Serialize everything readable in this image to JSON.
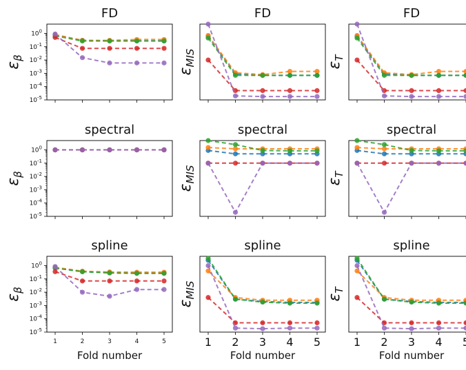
{
  "chart_data": [
    {
      "type": "line",
      "title": "FD",
      "ylabel": "ε_β",
      "xlabel": "",
      "yscale": "log",
      "ylim": [
        1e-05,
        5
      ],
      "x": [
        1,
        2,
        3,
        4,
        5
      ],
      "series": [
        {
          "color": "#1f77b4",
          "values": [
            0.8,
            0.3,
            0.28,
            0.28,
            0.28
          ]
        },
        {
          "color": "#ff7f0e",
          "values": [
            0.8,
            0.3,
            0.3,
            0.35,
            0.35
          ]
        },
        {
          "color": "#2ca02c",
          "values": [
            0.65,
            0.27,
            0.27,
            0.27,
            0.27
          ]
        },
        {
          "color": "#d62728",
          "values": [
            0.5,
            0.075,
            0.075,
            0.075,
            0.075
          ]
        },
        {
          "color": "#9467bd",
          "values": [
            0.9,
            0.015,
            0.006,
            0.006,
            0.006
          ]
        }
      ]
    },
    {
      "type": "line",
      "title": "FD",
      "ylabel": "ε_MIS",
      "xlabel": "",
      "yscale": "log",
      "ylim": [
        1e-05,
        5
      ],
      "x": [
        1,
        2,
        3,
        4,
        5
      ],
      "series": [
        {
          "color": "#1f77b4",
          "values": [
            0.6,
            0.0009,
            0.0007,
            0.0007,
            0.0007
          ]
        },
        {
          "color": "#ff7f0e",
          "values": [
            0.7,
            0.0011,
            0.0008,
            0.0014,
            0.0014
          ]
        },
        {
          "color": "#2ca02c",
          "values": [
            0.45,
            0.0007,
            0.0007,
            0.0007,
            0.0007
          ]
        },
        {
          "color": "#d62728",
          "values": [
            0.01,
            5e-05,
            5e-05,
            5e-05,
            5e-05
          ]
        },
        {
          "color": "#9467bd",
          "values": [
            5,
            2e-05,
            1.8e-05,
            1.8e-05,
            1.8e-05
          ]
        }
      ]
    },
    {
      "type": "line",
      "title": "FD",
      "ylabel": "ε_T",
      "xlabel": "",
      "yscale": "log",
      "ylim": [
        1e-05,
        5
      ],
      "x": [
        1,
        2,
        3,
        4,
        5
      ],
      "series": [
        {
          "color": "#1f77b4",
          "values": [
            0.6,
            0.0009,
            0.0007,
            0.0007,
            0.0007
          ]
        },
        {
          "color": "#ff7f0e",
          "values": [
            0.7,
            0.0011,
            0.0008,
            0.0014,
            0.0014
          ]
        },
        {
          "color": "#2ca02c",
          "values": [
            0.45,
            0.0007,
            0.0007,
            0.0007,
            0.0007
          ]
        },
        {
          "color": "#d62728",
          "values": [
            0.01,
            5e-05,
            5e-05,
            5e-05,
            5e-05
          ]
        },
        {
          "color": "#9467bd",
          "values": [
            5,
            2e-05,
            1.8e-05,
            1.8e-05,
            1.8e-05
          ]
        }
      ]
    },
    {
      "type": "line",
      "title": "spectral",
      "ylabel": "ε_β",
      "xlabel": "",
      "yscale": "log",
      "ylim": [
        1e-05,
        5
      ],
      "x": [
        1,
        2,
        3,
        4,
        5
      ],
      "series": [
        {
          "color": "#1f77b4",
          "values": [
            1.0,
            1.0,
            1.0,
            1.0,
            1.0
          ]
        },
        {
          "color": "#ff7f0e",
          "values": [
            1.0,
            1.0,
            1.0,
            1.0,
            1.0
          ]
        },
        {
          "color": "#2ca02c",
          "values": [
            1.0,
            1.0,
            1.0,
            1.0,
            1.0
          ]
        },
        {
          "color": "#d62728",
          "values": [
            1.0,
            1.0,
            1.0,
            1.0,
            1.0
          ]
        },
        {
          "color": "#9467bd",
          "values": [
            1.0,
            1.0,
            1.0,
            1.0,
            1.0
          ]
        }
      ]
    },
    {
      "type": "line",
      "title": "spectral",
      "ylabel": "ε_MIS",
      "xlabel": "",
      "yscale": "log",
      "ylim": [
        1e-05,
        5
      ],
      "x": [
        1,
        2,
        3,
        4,
        5
      ],
      "series": [
        {
          "color": "#1f77b4",
          "values": [
            0.9,
            0.5,
            0.5,
            0.5,
            0.5
          ]
        },
        {
          "color": "#ff7f0e",
          "values": [
            1.5,
            1.2,
            1.2,
            1.2,
            1.2
          ]
        },
        {
          "color": "#2ca02c",
          "values": [
            5,
            2.5,
            0.9,
            0.85,
            0.85
          ]
        },
        {
          "color": "#d62728",
          "values": [
            0.1,
            0.1,
            0.1,
            0.1,
            0.1
          ]
        },
        {
          "color": "#9467bd",
          "values": [
            0.1,
            2e-05,
            0.1,
            0.1,
            0.1
          ]
        }
      ]
    },
    {
      "type": "line",
      "title": "spectral",
      "ylabel": "ε_T",
      "xlabel": "",
      "yscale": "log",
      "ylim": [
        1e-05,
        5
      ],
      "x": [
        1,
        2,
        3,
        4,
        5
      ],
      "series": [
        {
          "color": "#1f77b4",
          "values": [
            0.9,
            0.5,
            0.5,
            0.5,
            0.5
          ]
        },
        {
          "color": "#ff7f0e",
          "values": [
            1.5,
            1.2,
            1.2,
            1.2,
            1.2
          ]
        },
        {
          "color": "#2ca02c",
          "values": [
            5,
            2.5,
            0.9,
            0.85,
            0.85
          ]
        },
        {
          "color": "#d62728",
          "values": [
            0.1,
            0.1,
            0.1,
            0.1,
            0.1
          ]
        },
        {
          "color": "#9467bd",
          "values": [
            0.1,
            2e-05,
            0.1,
            0.1,
            0.1
          ]
        }
      ]
    },
    {
      "type": "line",
      "title": "spline",
      "ylabel": "ε_β",
      "xlabel": "Fold number",
      "yscale": "log",
      "ylim": [
        1e-05,
        5
      ],
      "x": [
        1,
        2,
        3,
        4,
        5
      ],
      "xticklabels": [
        "1",
        "2",
        "3",
        "4",
        "5"
      ],
      "series": [
        {
          "color": "#1f77b4",
          "values": [
            0.7,
            0.35,
            0.3,
            0.28,
            0.28
          ]
        },
        {
          "color": "#ff7f0e",
          "values": [
            0.75,
            0.38,
            0.33,
            0.32,
            0.32
          ]
        },
        {
          "color": "#2ca02c",
          "values": [
            0.65,
            0.35,
            0.28,
            0.26,
            0.26
          ]
        },
        {
          "color": "#d62728",
          "values": [
            0.35,
            0.07,
            0.07,
            0.07,
            0.07
          ]
        },
        {
          "color": "#9467bd",
          "values": [
            0.85,
            0.01,
            0.005,
            0.016,
            0.016
          ]
        }
      ]
    },
    {
      "type": "line",
      "title": "spline",
      "ylabel": "ε_MIS",
      "xlabel": "Fold number",
      "yscale": "log",
      "ylim": [
        1e-05,
        5
      ],
      "x": [
        1,
        2,
        3,
        4,
        5
      ],
      "xticklabels": [
        "1",
        "2",
        "3",
        "4",
        "5"
      ],
      "series": [
        {
          "color": "#1f77b4",
          "values": [
            2.5,
            0.003,
            0.002,
            0.0017,
            0.0017
          ]
        },
        {
          "color": "#ff7f0e",
          "values": [
            0.4,
            0.004,
            0.0025,
            0.0025,
            0.0025
          ]
        },
        {
          "color": "#2ca02c",
          "values": [
            3.5,
            0.003,
            0.0018,
            0.0015,
            0.0015
          ]
        },
        {
          "color": "#d62728",
          "values": [
            0.004,
            5e-05,
            5e-05,
            5e-05,
            5e-05
          ]
        },
        {
          "color": "#9467bd",
          "values": [
            1.0,
            2e-05,
            1.8e-05,
            2e-05,
            2e-05
          ]
        }
      ]
    },
    {
      "type": "line",
      "title": "spline",
      "ylabel": "ε_T",
      "xlabel": "Fold number",
      "yscale": "log",
      "ylim": [
        1e-05,
        5
      ],
      "x": [
        1,
        2,
        3,
        4,
        5
      ],
      "xticklabels": [
        "1",
        "2",
        "3",
        "4",
        "5"
      ],
      "series": [
        {
          "color": "#1f77b4",
          "values": [
            2.5,
            0.003,
            0.002,
            0.0017,
            0.0017
          ]
        },
        {
          "color": "#ff7f0e",
          "values": [
            0.4,
            0.004,
            0.0025,
            0.0025,
            0.0025
          ]
        },
        {
          "color": "#2ca02c",
          "values": [
            3.5,
            0.003,
            0.0018,
            0.0015,
            0.0015
          ]
        },
        {
          "color": "#d62728",
          "values": [
            0.004,
            5e-05,
            5e-05,
            5e-05,
            5e-05
          ]
        },
        {
          "color": "#9467bd",
          "values": [
            1.0,
            2e-05,
            1.8e-05,
            2e-05,
            2e-05
          ]
        }
      ]
    }
  ],
  "y_tick_labels": [
    "10^0",
    "10^-1",
    "10^-2",
    "10^-3",
    "10^-4",
    "10^-5"
  ]
}
